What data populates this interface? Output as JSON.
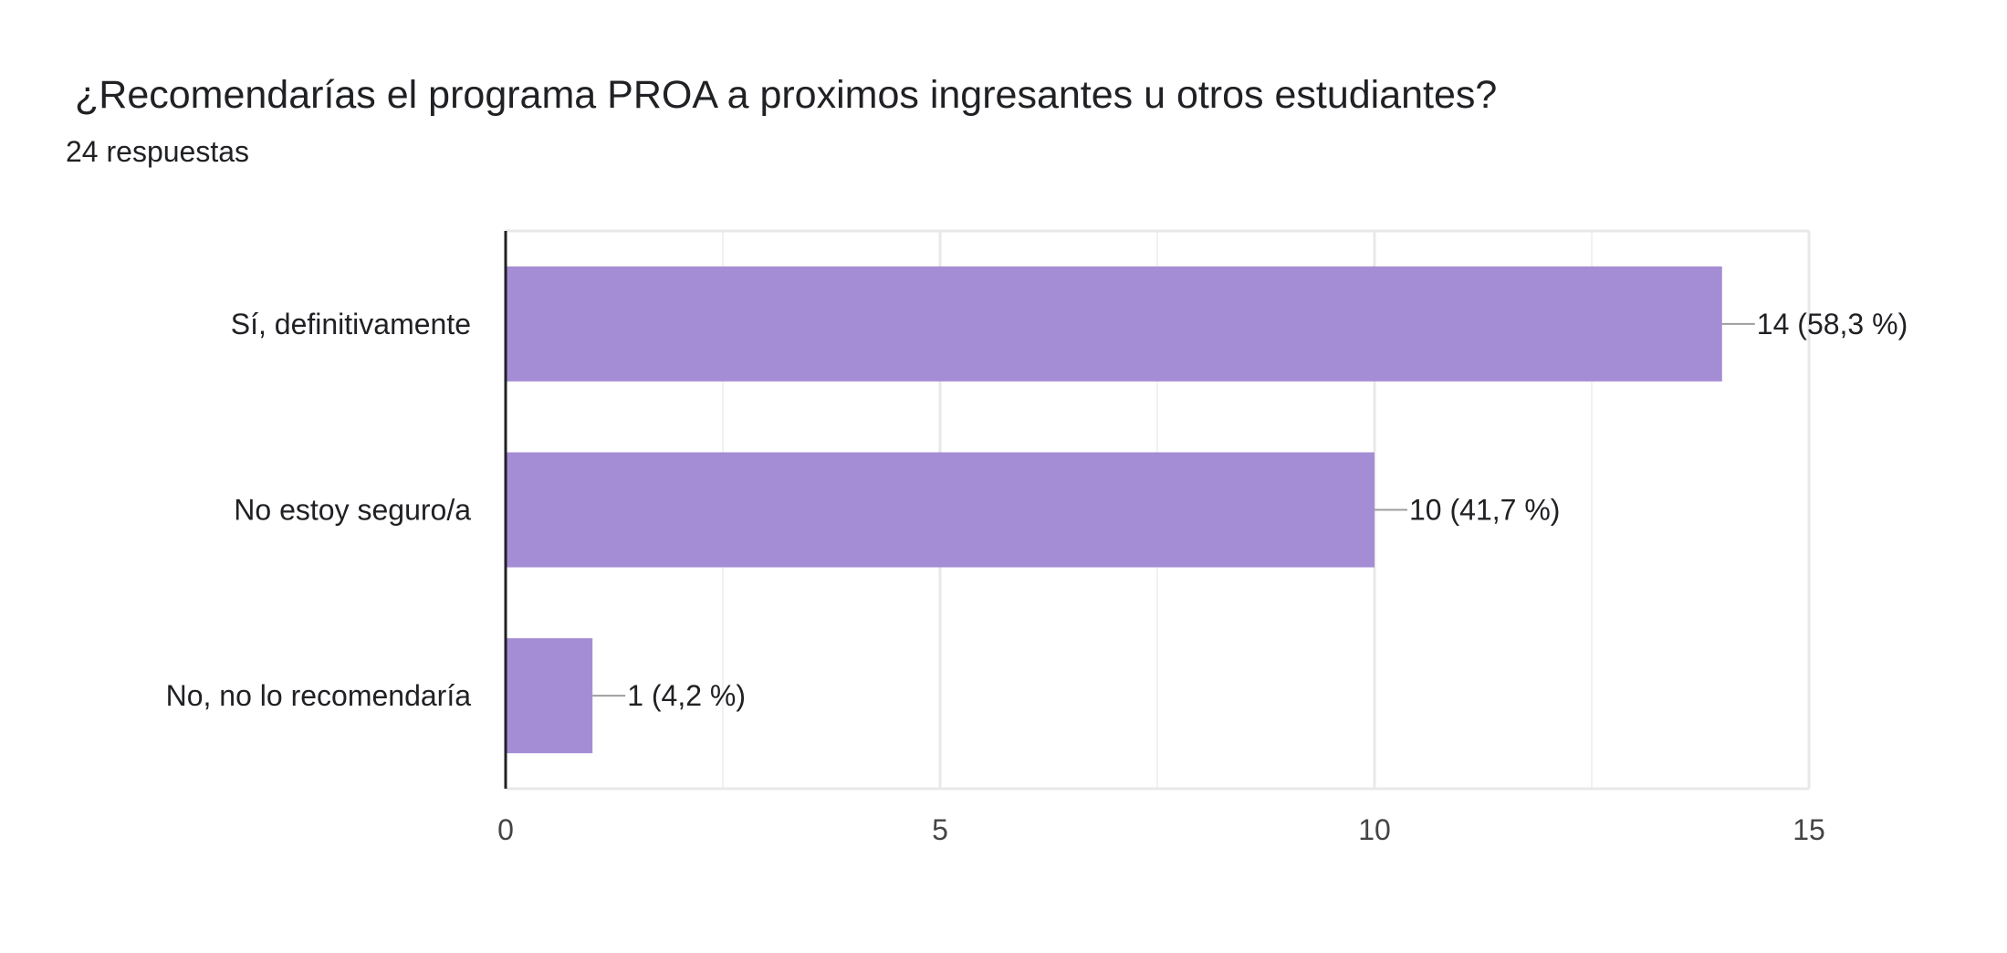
{
  "header": {
    "title": "¿Recomendarías el programa PROA a proximos ingresantes u otros estudiantes?",
    "responses": "24 respuestas"
  },
  "colors": {
    "bar": "#a48dd5",
    "axis": "#202124",
    "grid": "#e8e8e8",
    "leader": "#9e9e9e"
  },
  "chart_data": {
    "type": "bar",
    "orientation": "horizontal",
    "title": "¿Recomendarías el programa PROA a proximos ingresantes u otros estudiantes?",
    "subtitle": "24 respuestas",
    "categories": [
      "Sí, definitivamente",
      "No estoy seguro/a",
      "No, no lo recomendaría"
    ],
    "values": [
      14,
      10,
      1
    ],
    "data_labels": [
      "14 (58,3 %)",
      "10 (41,7 %)",
      "1 (4,2 %)"
    ],
    "xlim": [
      0,
      15
    ],
    "xticks": [
      0,
      5,
      10,
      15
    ],
    "grid": true,
    "minor_grid": true,
    "legend": "none"
  }
}
